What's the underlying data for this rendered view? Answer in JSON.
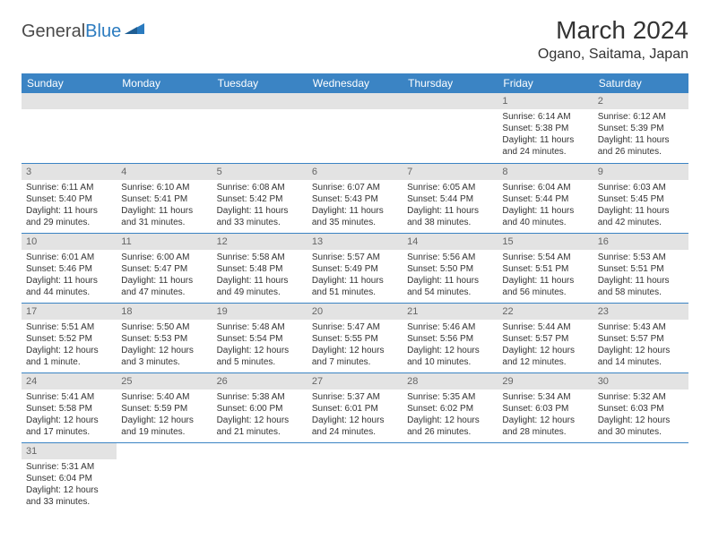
{
  "logo": {
    "part1": "General",
    "part2": "Blue"
  },
  "title": "March 2024",
  "location": "Ogano, Saitama, Japan",
  "weekdays": [
    "Sunday",
    "Monday",
    "Tuesday",
    "Wednesday",
    "Thursday",
    "Friday",
    "Saturday"
  ],
  "colors": {
    "header_bg": "#3b84c4",
    "header_fg": "#ffffff",
    "daynum_bg": "#e3e3e3",
    "cell_border": "#3b84c4",
    "text": "#333333",
    "logo_blue": "#2b7bbf",
    "logo_gray": "#4a4a4a",
    "background": "#ffffff"
  },
  "typography": {
    "title_fontsize": 28,
    "location_fontsize": 16,
    "weekday_fontsize": 12,
    "daynum_fontsize": 11,
    "cell_fontsize": 10
  },
  "weeks": [
    [
      {
        "num": "",
        "lines": []
      },
      {
        "num": "",
        "lines": []
      },
      {
        "num": "",
        "lines": []
      },
      {
        "num": "",
        "lines": []
      },
      {
        "num": "",
        "lines": []
      },
      {
        "num": "1",
        "lines": [
          "Sunrise: 6:14 AM",
          "Sunset: 5:38 PM",
          "Daylight: 11 hours and 24 minutes."
        ]
      },
      {
        "num": "2",
        "lines": [
          "Sunrise: 6:12 AM",
          "Sunset: 5:39 PM",
          "Daylight: 11 hours and 26 minutes."
        ]
      }
    ],
    [
      {
        "num": "3",
        "lines": [
          "Sunrise: 6:11 AM",
          "Sunset: 5:40 PM",
          "Daylight: 11 hours and 29 minutes."
        ]
      },
      {
        "num": "4",
        "lines": [
          "Sunrise: 6:10 AM",
          "Sunset: 5:41 PM",
          "Daylight: 11 hours and 31 minutes."
        ]
      },
      {
        "num": "5",
        "lines": [
          "Sunrise: 6:08 AM",
          "Sunset: 5:42 PM",
          "Daylight: 11 hours and 33 minutes."
        ]
      },
      {
        "num": "6",
        "lines": [
          "Sunrise: 6:07 AM",
          "Sunset: 5:43 PM",
          "Daylight: 11 hours and 35 minutes."
        ]
      },
      {
        "num": "7",
        "lines": [
          "Sunrise: 6:05 AM",
          "Sunset: 5:44 PM",
          "Daylight: 11 hours and 38 minutes."
        ]
      },
      {
        "num": "8",
        "lines": [
          "Sunrise: 6:04 AM",
          "Sunset: 5:44 PM",
          "Daylight: 11 hours and 40 minutes."
        ]
      },
      {
        "num": "9",
        "lines": [
          "Sunrise: 6:03 AM",
          "Sunset: 5:45 PM",
          "Daylight: 11 hours and 42 minutes."
        ]
      }
    ],
    [
      {
        "num": "10",
        "lines": [
          "Sunrise: 6:01 AM",
          "Sunset: 5:46 PM",
          "Daylight: 11 hours and 44 minutes."
        ]
      },
      {
        "num": "11",
        "lines": [
          "Sunrise: 6:00 AM",
          "Sunset: 5:47 PM",
          "Daylight: 11 hours and 47 minutes."
        ]
      },
      {
        "num": "12",
        "lines": [
          "Sunrise: 5:58 AM",
          "Sunset: 5:48 PM",
          "Daylight: 11 hours and 49 minutes."
        ]
      },
      {
        "num": "13",
        "lines": [
          "Sunrise: 5:57 AM",
          "Sunset: 5:49 PM",
          "Daylight: 11 hours and 51 minutes."
        ]
      },
      {
        "num": "14",
        "lines": [
          "Sunrise: 5:56 AM",
          "Sunset: 5:50 PM",
          "Daylight: 11 hours and 54 minutes."
        ]
      },
      {
        "num": "15",
        "lines": [
          "Sunrise: 5:54 AM",
          "Sunset: 5:51 PM",
          "Daylight: 11 hours and 56 minutes."
        ]
      },
      {
        "num": "16",
        "lines": [
          "Sunrise: 5:53 AM",
          "Sunset: 5:51 PM",
          "Daylight: 11 hours and 58 minutes."
        ]
      }
    ],
    [
      {
        "num": "17",
        "lines": [
          "Sunrise: 5:51 AM",
          "Sunset: 5:52 PM",
          "Daylight: 12 hours and 1 minute."
        ]
      },
      {
        "num": "18",
        "lines": [
          "Sunrise: 5:50 AM",
          "Sunset: 5:53 PM",
          "Daylight: 12 hours and 3 minutes."
        ]
      },
      {
        "num": "19",
        "lines": [
          "Sunrise: 5:48 AM",
          "Sunset: 5:54 PM",
          "Daylight: 12 hours and 5 minutes."
        ]
      },
      {
        "num": "20",
        "lines": [
          "Sunrise: 5:47 AM",
          "Sunset: 5:55 PM",
          "Daylight: 12 hours and 7 minutes."
        ]
      },
      {
        "num": "21",
        "lines": [
          "Sunrise: 5:46 AM",
          "Sunset: 5:56 PM",
          "Daylight: 12 hours and 10 minutes."
        ]
      },
      {
        "num": "22",
        "lines": [
          "Sunrise: 5:44 AM",
          "Sunset: 5:57 PM",
          "Daylight: 12 hours and 12 minutes."
        ]
      },
      {
        "num": "23",
        "lines": [
          "Sunrise: 5:43 AM",
          "Sunset: 5:57 PM",
          "Daylight: 12 hours and 14 minutes."
        ]
      }
    ],
    [
      {
        "num": "24",
        "lines": [
          "Sunrise: 5:41 AM",
          "Sunset: 5:58 PM",
          "Daylight: 12 hours and 17 minutes."
        ]
      },
      {
        "num": "25",
        "lines": [
          "Sunrise: 5:40 AM",
          "Sunset: 5:59 PM",
          "Daylight: 12 hours and 19 minutes."
        ]
      },
      {
        "num": "26",
        "lines": [
          "Sunrise: 5:38 AM",
          "Sunset: 6:00 PM",
          "Daylight: 12 hours and 21 minutes."
        ]
      },
      {
        "num": "27",
        "lines": [
          "Sunrise: 5:37 AM",
          "Sunset: 6:01 PM",
          "Daylight: 12 hours and 24 minutes."
        ]
      },
      {
        "num": "28",
        "lines": [
          "Sunrise: 5:35 AM",
          "Sunset: 6:02 PM",
          "Daylight: 12 hours and 26 minutes."
        ]
      },
      {
        "num": "29",
        "lines": [
          "Sunrise: 5:34 AM",
          "Sunset: 6:03 PM",
          "Daylight: 12 hours and 28 minutes."
        ]
      },
      {
        "num": "30",
        "lines": [
          "Sunrise: 5:32 AM",
          "Sunset: 6:03 PM",
          "Daylight: 12 hours and 30 minutes."
        ]
      }
    ],
    [
      {
        "num": "31",
        "lines": [
          "Sunrise: 5:31 AM",
          "Sunset: 6:04 PM",
          "Daylight: 12 hours and 33 minutes."
        ]
      },
      {
        "num": "",
        "lines": []
      },
      {
        "num": "",
        "lines": []
      },
      {
        "num": "",
        "lines": []
      },
      {
        "num": "",
        "lines": []
      },
      {
        "num": "",
        "lines": []
      },
      {
        "num": "",
        "lines": []
      }
    ]
  ]
}
